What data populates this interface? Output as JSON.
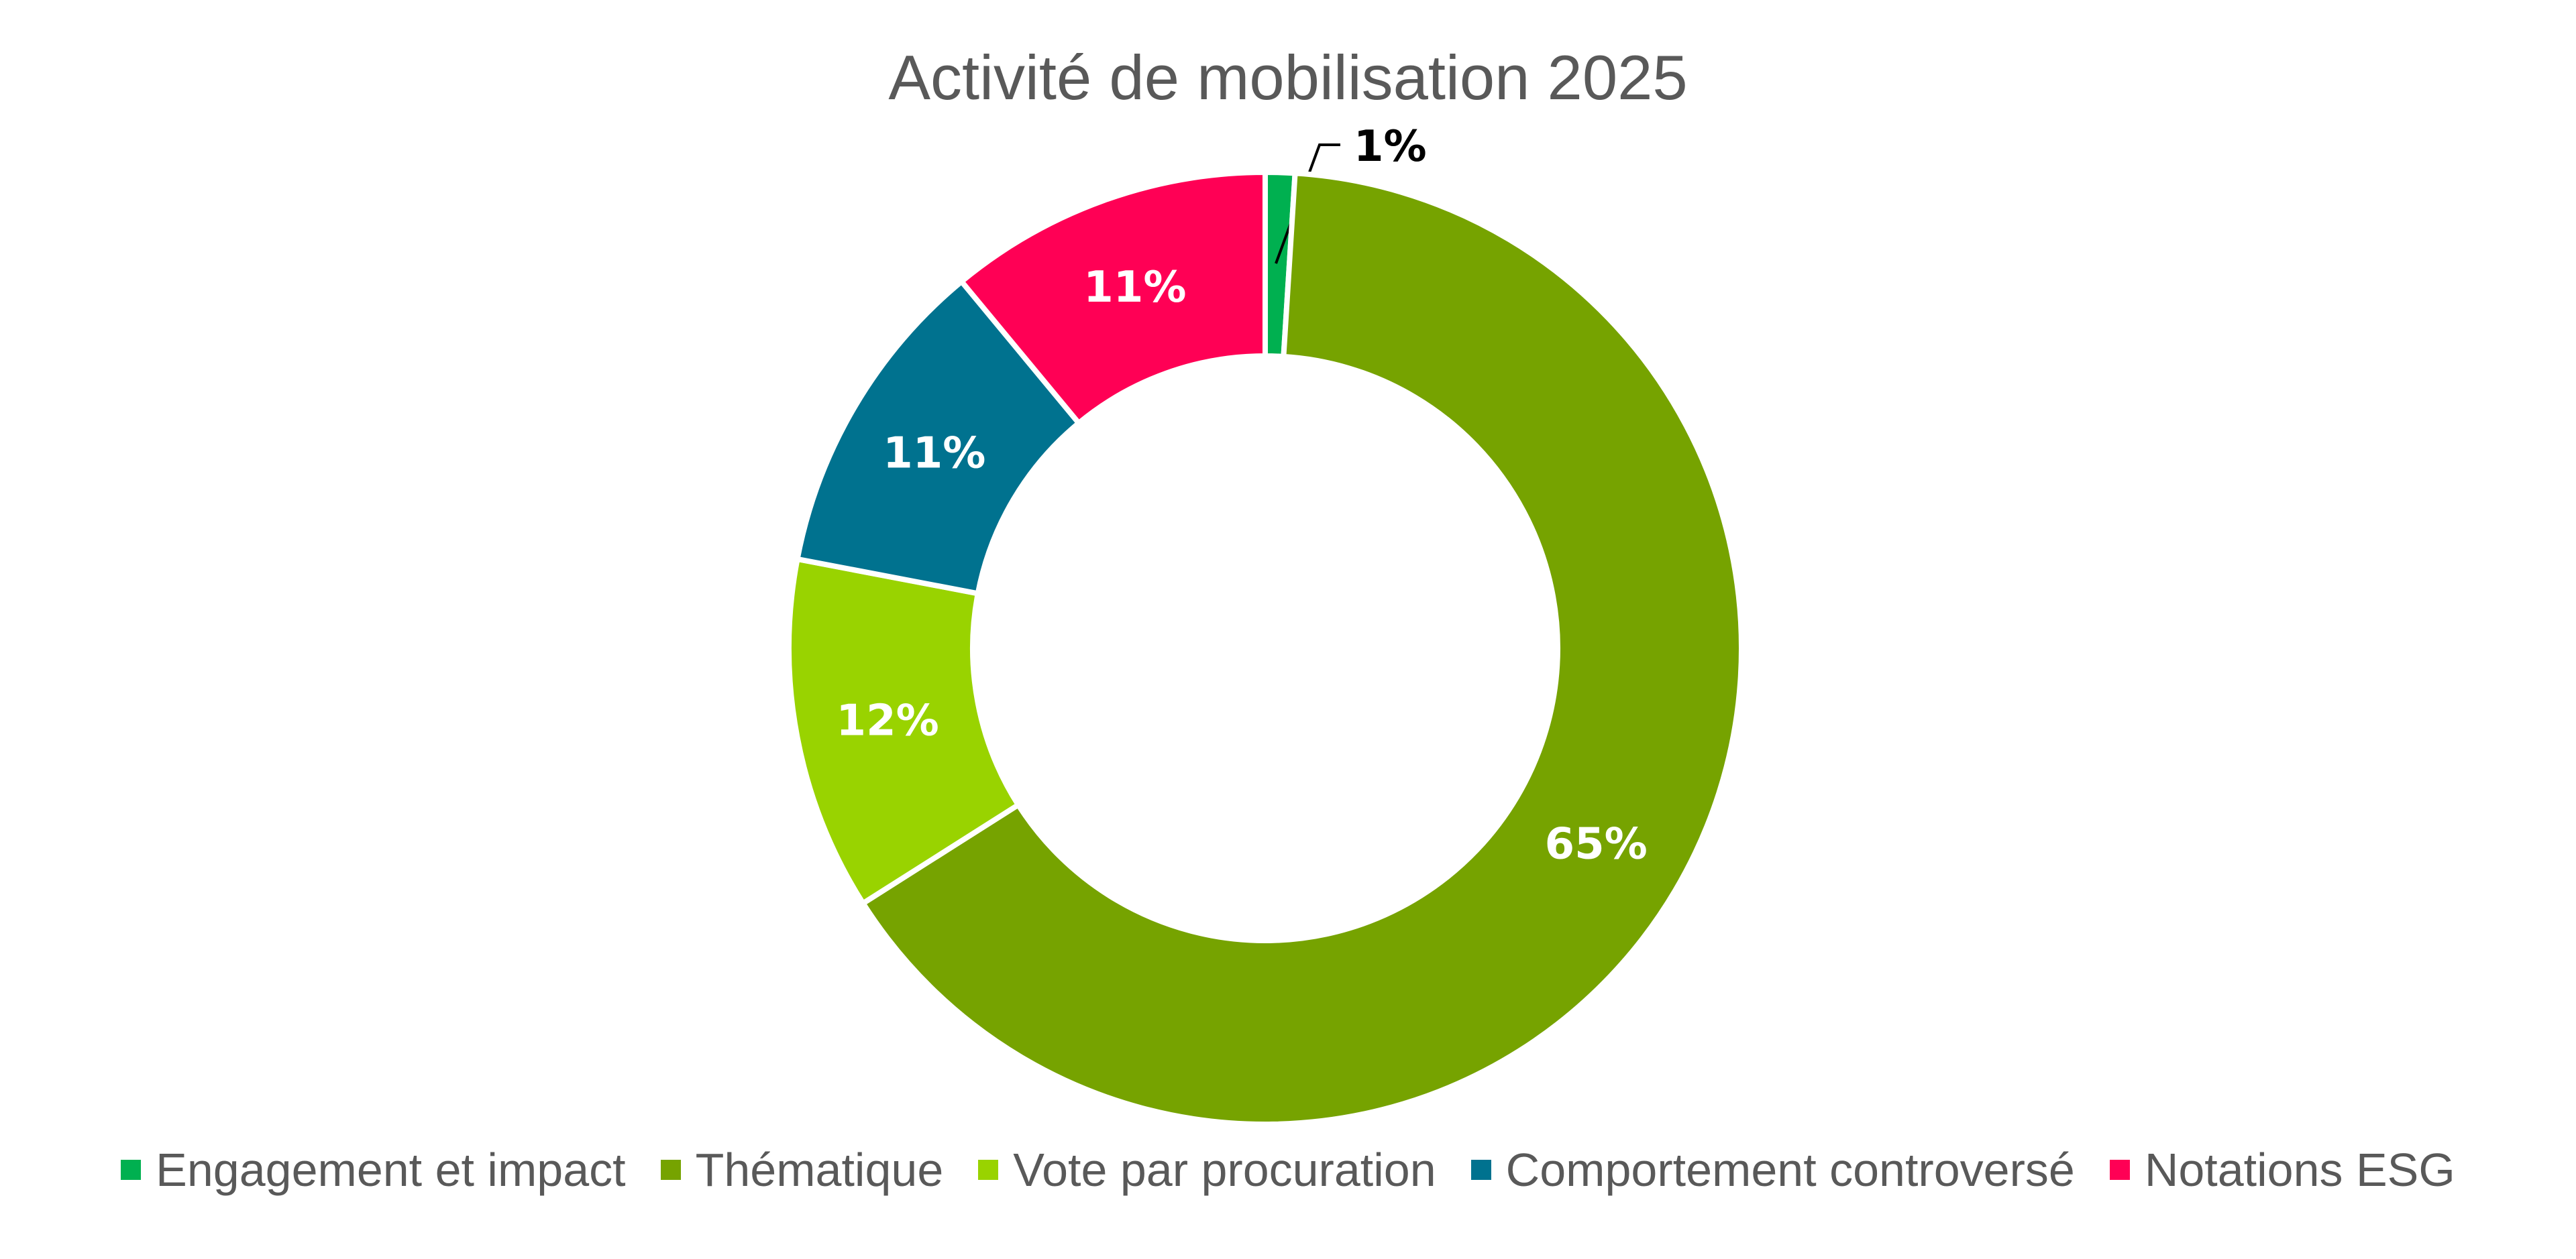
{
  "chart_data": {
    "type": "pie",
    "variant": "donut",
    "title": "Activité de mobilisation 2025",
    "categories": [
      "Engagement et impact",
      "Thématique",
      "Vote par procuration",
      "Comportement controversé",
      "Notations ESG"
    ],
    "values": [
      1,
      65,
      12,
      11,
      11
    ],
    "data_labels": [
      "1%",
      "65%",
      "12%",
      "11%",
      "11%"
    ],
    "colors": [
      "#00B050",
      "#76A300",
      "#99D300",
      "#00728F",
      "#FF0055"
    ],
    "legend_position": "bottom"
  }
}
